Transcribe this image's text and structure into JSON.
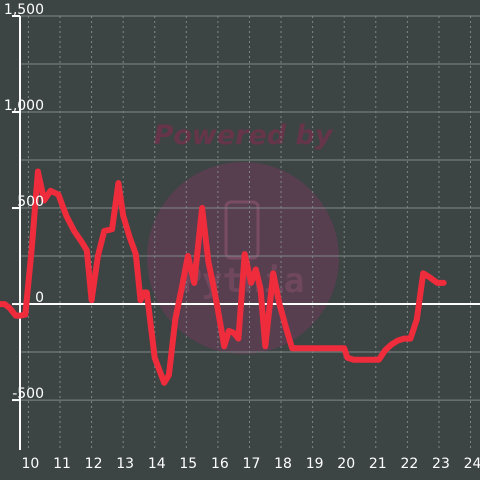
{
  "watermark": {
    "line1": "Powered by",
    "line2": "Pythia",
    "circle_color": "#7a3a60"
  },
  "colors": {
    "background": "#3c4444",
    "grid": "#7f8787",
    "axis": "#ffffff",
    "series": "#ee2c3c"
  },
  "chart_data": {
    "type": "line",
    "title": "",
    "xlabel": "",
    "ylabel": "",
    "xlim": [
      9.1,
      24.3
    ],
    "ylim": [
      -760,
      1500
    ],
    "x_ticks": [
      10,
      11,
      12,
      13,
      14,
      15,
      16,
      17,
      18,
      19,
      20,
      21,
      22,
      23,
      24
    ],
    "x_tick_labels": [
      "10",
      "11",
      "12",
      "13",
      "14",
      "15",
      "16",
      "17",
      "18",
      "19",
      "20",
      "21",
      "22",
      "23",
      "24"
    ],
    "y_ticks": [
      -500,
      0,
      500,
      1000,
      1500
    ],
    "y_tick_labels": [
      "-500",
      "0",
      "500",
      "1,000",
      "1,500"
    ],
    "grid": true,
    "legend": "none",
    "series": [
      {
        "x": [
          9.1,
          9.25,
          9.4,
          9.6,
          9.75,
          9.9,
          10.1,
          10.3,
          10.5,
          10.7,
          10.95,
          11.2,
          11.45,
          11.7,
          11.85,
          12.0,
          12.2,
          12.4,
          12.65,
          12.85,
          13.0,
          13.2,
          13.4,
          13.55,
          13.65,
          13.75,
          14.0,
          14.3,
          14.45,
          14.65,
          14.85,
          15.05,
          15.25,
          15.5,
          15.7,
          15.85,
          16.0,
          16.2,
          16.35,
          16.5,
          16.65,
          16.85,
          17.05,
          17.2,
          17.35,
          17.5,
          17.75,
          17.95,
          18.15,
          18.35,
          18.55,
          18.75,
          19.05,
          19.55,
          20.0,
          20.1,
          20.3,
          20.5,
          20.9,
          21.1,
          21.3,
          21.5,
          21.7,
          21.9,
          22.1,
          22.3,
          22.5,
          22.7,
          22.95,
          23.15
        ],
        "y": [
          0,
          0,
          -20,
          -60,
          -60,
          -55,
          280,
          690,
          540,
          590,
          570,
          460,
          380,
          320,
          280,
          20,
          250,
          380,
          390,
          630,
          460,
          350,
          260,
          20,
          60,
          60,
          -280,
          -410,
          -370,
          -80,
          80,
          250,
          110,
          500,
          220,
          100,
          -30,
          -220,
          -140,
          -150,
          -180,
          260,
          110,
          180,
          80,
          -220,
          160,
          0,
          -120,
          -230,
          -230,
          -230,
          -230,
          -230,
          -230,
          -280,
          -290,
          -290,
          -290,
          -290,
          -240,
          -210,
          -190,
          -180,
          -180,
          -80,
          160,
          140,
          110,
          110
        ]
      }
    ]
  }
}
